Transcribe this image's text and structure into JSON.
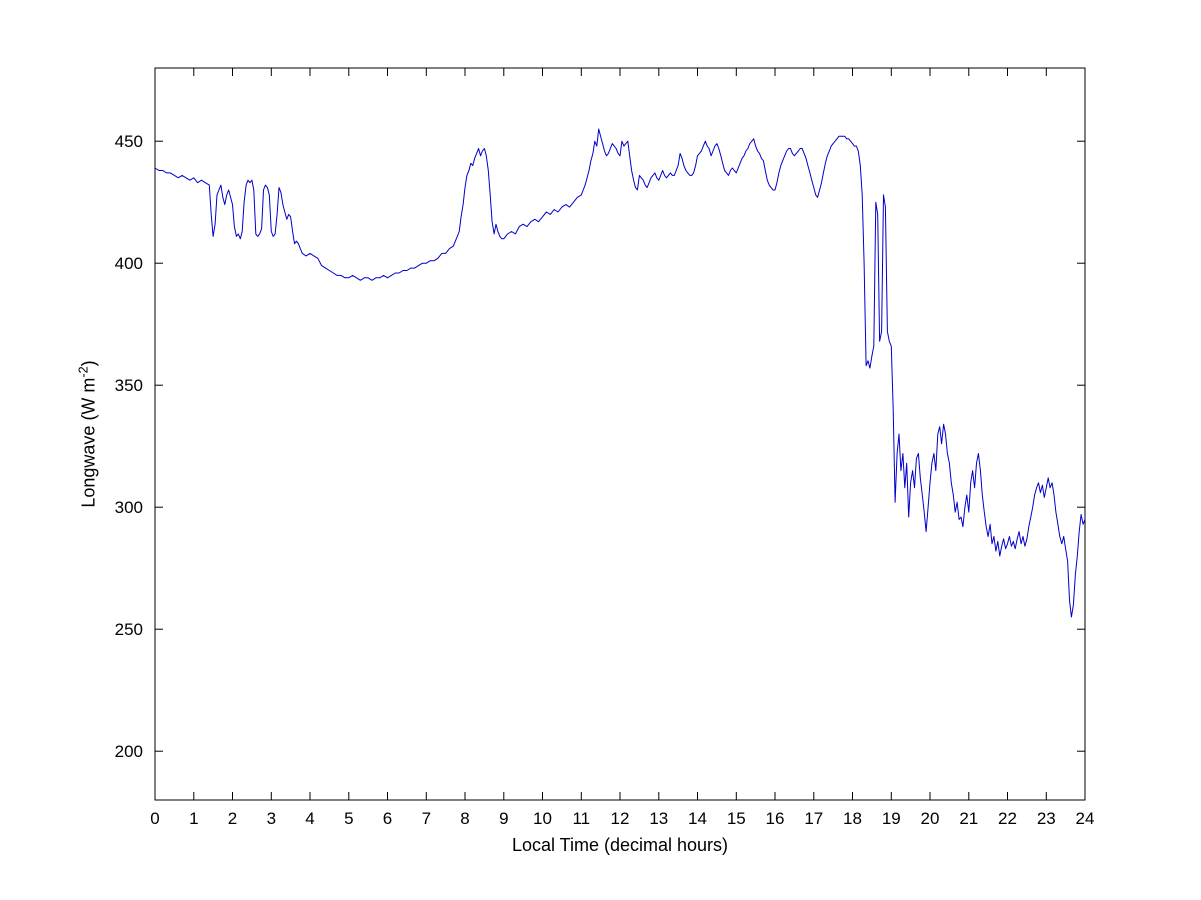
{
  "figure": {
    "xlabel": "Local Time (decimal hours)",
    "ylabel_pre": "Longwave (W m",
    "ylabel_sup": "-2",
    "ylabel_post": ")"
  },
  "chart_data": {
    "type": "line",
    "title": "",
    "xlabel": "Local Time (decimal hours)",
    "ylabel": "Longwave (W m^-2)",
    "xlim": [
      0,
      24
    ],
    "ylim": [
      180,
      480
    ],
    "xticks": [
      0,
      1,
      2,
      3,
      4,
      5,
      6,
      7,
      8,
      9,
      10,
      11,
      12,
      13,
      14,
      15,
      16,
      17,
      18,
      19,
      20,
      21,
      22,
      23,
      24
    ],
    "yticks": [
      200,
      250,
      300,
      350,
      400,
      450
    ],
    "grid": false,
    "legend": false,
    "line_color": "#0000cc",
    "axis_color": "#000000",
    "points": [
      [
        0,
        439
      ],
      [
        0.1,
        438
      ],
      [
        0.2,
        438
      ],
      [
        0.3,
        437
      ],
      [
        0.4,
        437
      ],
      [
        0.5,
        436
      ],
      [
        0.6,
        435
      ],
      [
        0.7,
        436
      ],
      [
        0.8,
        435
      ],
      [
        0.9,
        434
      ],
      [
        1.0,
        435
      ],
      [
        1.1,
        433
      ],
      [
        1.2,
        434
      ],
      [
        1.3,
        433
      ],
      [
        1.4,
        432
      ],
      [
        1.45,
        420
      ],
      [
        1.5,
        411
      ],
      [
        1.55,
        416
      ],
      [
        1.6,
        428
      ],
      [
        1.65,
        430
      ],
      [
        1.7,
        432
      ],
      [
        1.75,
        427
      ],
      [
        1.8,
        424
      ],
      [
        1.85,
        428
      ],
      [
        1.9,
        430
      ],
      [
        1.95,
        427
      ],
      [
        2.0,
        424
      ],
      [
        2.05,
        415
      ],
      [
        2.1,
        411
      ],
      [
        2.15,
        412
      ],
      [
        2.2,
        410
      ],
      [
        2.25,
        413
      ],
      [
        2.3,
        425
      ],
      [
        2.35,
        432
      ],
      [
        2.4,
        434
      ],
      [
        2.45,
        433
      ],
      [
        2.5,
        434
      ],
      [
        2.55,
        430
      ],
      [
        2.6,
        412
      ],
      [
        2.65,
        411
      ],
      [
        2.7,
        412
      ],
      [
        2.75,
        414
      ],
      [
        2.8,
        430
      ],
      [
        2.85,
        432
      ],
      [
        2.9,
        431
      ],
      [
        2.95,
        428
      ],
      [
        3.0,
        413
      ],
      [
        3.05,
        411
      ],
      [
        3.1,
        412
      ],
      [
        3.15,
        420
      ],
      [
        3.2,
        431
      ],
      [
        3.25,
        429
      ],
      [
        3.3,
        424
      ],
      [
        3.35,
        421
      ],
      [
        3.4,
        418
      ],
      [
        3.45,
        420
      ],
      [
        3.5,
        419
      ],
      [
        3.55,
        413
      ],
      [
        3.6,
        408
      ],
      [
        3.65,
        409
      ],
      [
        3.7,
        408
      ],
      [
        3.75,
        406
      ],
      [
        3.8,
        404
      ],
      [
        3.9,
        403
      ],
      [
        4.0,
        404
      ],
      [
        4.1,
        403
      ],
      [
        4.2,
        402
      ],
      [
        4.3,
        399
      ],
      [
        4.4,
        398
      ],
      [
        4.5,
        397
      ],
      [
        4.6,
        396
      ],
      [
        4.7,
        395
      ],
      [
        4.8,
        395
      ],
      [
        4.9,
        394
      ],
      [
        5.0,
        394
      ],
      [
        5.1,
        395
      ],
      [
        5.2,
        394
      ],
      [
        5.3,
        393
      ],
      [
        5.4,
        394
      ],
      [
        5.5,
        394
      ],
      [
        5.6,
        393
      ],
      [
        5.7,
        394
      ],
      [
        5.8,
        394
      ],
      [
        5.9,
        395
      ],
      [
        6.0,
        394
      ],
      [
        6.1,
        395
      ],
      [
        6.2,
        396
      ],
      [
        6.3,
        396
      ],
      [
        6.4,
        397
      ],
      [
        6.5,
        397
      ],
      [
        6.6,
        398
      ],
      [
        6.7,
        398
      ],
      [
        6.8,
        399
      ],
      [
        6.9,
        400
      ],
      [
        7.0,
        400
      ],
      [
        7.1,
        401
      ],
      [
        7.2,
        401
      ],
      [
        7.3,
        402
      ],
      [
        7.4,
        404
      ],
      [
        7.5,
        404
      ],
      [
        7.6,
        406
      ],
      [
        7.7,
        407
      ],
      [
        7.75,
        409
      ],
      [
        7.8,
        411
      ],
      [
        7.85,
        413
      ],
      [
        7.9,
        419
      ],
      [
        7.95,
        424
      ],
      [
        8.0,
        431
      ],
      [
        8.05,
        436
      ],
      [
        8.1,
        438
      ],
      [
        8.15,
        441
      ],
      [
        8.2,
        440
      ],
      [
        8.25,
        443
      ],
      [
        8.3,
        445
      ],
      [
        8.35,
        447
      ],
      [
        8.4,
        444
      ],
      [
        8.45,
        446
      ],
      [
        8.5,
        447
      ],
      [
        8.55,
        444
      ],
      [
        8.6,
        438
      ],
      [
        8.65,
        428
      ],
      [
        8.7,
        417
      ],
      [
        8.75,
        412
      ],
      [
        8.8,
        416
      ],
      [
        8.85,
        413
      ],
      [
        8.9,
        411
      ],
      [
        8.95,
        410
      ],
      [
        9.0,
        410
      ],
      [
        9.1,
        412
      ],
      [
        9.2,
        413
      ],
      [
        9.3,
        412
      ],
      [
        9.4,
        415
      ],
      [
        9.5,
        416
      ],
      [
        9.6,
        415
      ],
      [
        9.7,
        417
      ],
      [
        9.8,
        418
      ],
      [
        9.9,
        417
      ],
      [
        10.0,
        419
      ],
      [
        10.1,
        421
      ],
      [
        10.2,
        420
      ],
      [
        10.3,
        422
      ],
      [
        10.4,
        421
      ],
      [
        10.5,
        423
      ],
      [
        10.6,
        424
      ],
      [
        10.7,
        423
      ],
      [
        10.8,
        425
      ],
      [
        10.9,
        427
      ],
      [
        11.0,
        428
      ],
      [
        11.05,
        430
      ],
      [
        11.1,
        432
      ],
      [
        11.15,
        435
      ],
      [
        11.2,
        438
      ],
      [
        11.25,
        442
      ],
      [
        11.3,
        445
      ],
      [
        11.35,
        450
      ],
      [
        11.4,
        448
      ],
      [
        11.45,
        455
      ],
      [
        11.5,
        452
      ],
      [
        11.55,
        449
      ],
      [
        11.6,
        446
      ],
      [
        11.65,
        444
      ],
      [
        11.7,
        445
      ],
      [
        11.75,
        447
      ],
      [
        11.8,
        449
      ],
      [
        11.85,
        448
      ],
      [
        11.9,
        447
      ],
      [
        11.95,
        445
      ],
      [
        12.0,
        444
      ],
      [
        12.05,
        450
      ],
      [
        12.1,
        448
      ],
      [
        12.15,
        449
      ],
      [
        12.2,
        450
      ],
      [
        12.25,
        444
      ],
      [
        12.3,
        438
      ],
      [
        12.35,
        434
      ],
      [
        12.4,
        431
      ],
      [
        12.45,
        430
      ],
      [
        12.5,
        436
      ],
      [
        12.55,
        435
      ],
      [
        12.6,
        434
      ],
      [
        12.65,
        432
      ],
      [
        12.7,
        431
      ],
      [
        12.75,
        433
      ],
      [
        12.8,
        435
      ],
      [
        12.85,
        436
      ],
      [
        12.9,
        437
      ],
      [
        12.95,
        435
      ],
      [
        13.0,
        434
      ],
      [
        13.05,
        436
      ],
      [
        13.1,
        438
      ],
      [
        13.15,
        436
      ],
      [
        13.2,
        435
      ],
      [
        13.25,
        436
      ],
      [
        13.3,
        437
      ],
      [
        13.35,
        436
      ],
      [
        13.4,
        436
      ],
      [
        13.45,
        438
      ],
      [
        13.5,
        440
      ],
      [
        13.55,
        445
      ],
      [
        13.6,
        443
      ],
      [
        13.65,
        440
      ],
      [
        13.7,
        438
      ],
      [
        13.75,
        437
      ],
      [
        13.8,
        436
      ],
      [
        13.85,
        436
      ],
      [
        13.9,
        437
      ],
      [
        13.95,
        440
      ],
      [
        14.0,
        444
      ],
      [
        14.05,
        445
      ],
      [
        14.1,
        446
      ],
      [
        14.15,
        448
      ],
      [
        14.2,
        450
      ],
      [
        14.25,
        448
      ],
      [
        14.3,
        447
      ],
      [
        14.35,
        444
      ],
      [
        14.4,
        446
      ],
      [
        14.45,
        448
      ],
      [
        14.5,
        449
      ],
      [
        14.55,
        447
      ],
      [
        14.6,
        444
      ],
      [
        14.65,
        441
      ],
      [
        14.7,
        438
      ],
      [
        14.75,
        437
      ],
      [
        14.8,
        436
      ],
      [
        14.85,
        438
      ],
      [
        14.9,
        439
      ],
      [
        14.95,
        438
      ],
      [
        15.0,
        437
      ],
      [
        15.05,
        439
      ],
      [
        15.1,
        441
      ],
      [
        15.15,
        443
      ],
      [
        15.2,
        444
      ],
      [
        15.25,
        446
      ],
      [
        15.3,
        447
      ],
      [
        15.35,
        449
      ],
      [
        15.4,
        450
      ],
      [
        15.45,
        451
      ],
      [
        15.5,
        448
      ],
      [
        15.55,
        446
      ],
      [
        15.6,
        445
      ],
      [
        15.65,
        443
      ],
      [
        15.7,
        442
      ],
      [
        15.75,
        438
      ],
      [
        15.8,
        434
      ],
      [
        15.85,
        432
      ],
      [
        15.9,
        431
      ],
      [
        15.95,
        430
      ],
      [
        16.0,
        430
      ],
      [
        16.05,
        433
      ],
      [
        16.1,
        437
      ],
      [
        16.15,
        440
      ],
      [
        16.2,
        442
      ],
      [
        16.25,
        444
      ],
      [
        16.3,
        446
      ],
      [
        16.35,
        447
      ],
      [
        16.4,
        447
      ],
      [
        16.45,
        445
      ],
      [
        16.5,
        444
      ],
      [
        16.55,
        445
      ],
      [
        16.6,
        446
      ],
      [
        16.65,
        447
      ],
      [
        16.7,
        447
      ],
      [
        16.75,
        445
      ],
      [
        16.8,
        443
      ],
      [
        16.85,
        440
      ],
      [
        16.9,
        437
      ],
      [
        16.95,
        434
      ],
      [
        17.0,
        431
      ],
      [
        17.05,
        428
      ],
      [
        17.1,
        427
      ],
      [
        17.15,
        430
      ],
      [
        17.2,
        433
      ],
      [
        17.25,
        437
      ],
      [
        17.3,
        441
      ],
      [
        17.35,
        444
      ],
      [
        17.4,
        446
      ],
      [
        17.45,
        448
      ],
      [
        17.5,
        449
      ],
      [
        17.55,
        450
      ],
      [
        17.6,
        451
      ],
      [
        17.65,
        452
      ],
      [
        17.7,
        452
      ],
      [
        17.75,
        452
      ],
      [
        17.8,
        452
      ],
      [
        17.85,
        451
      ],
      [
        17.9,
        451
      ],
      [
        17.95,
        450
      ],
      [
        18.0,
        449
      ],
      [
        18.05,
        448
      ],
      [
        18.1,
        448
      ],
      [
        18.15,
        446
      ],
      [
        18.2,
        440
      ],
      [
        18.25,
        428
      ],
      [
        18.3,
        400
      ],
      [
        18.35,
        358
      ],
      [
        18.4,
        360
      ],
      [
        18.45,
        357
      ],
      [
        18.5,
        362
      ],
      [
        18.55,
        366
      ],
      [
        18.6,
        425
      ],
      [
        18.65,
        420
      ],
      [
        18.7,
        368
      ],
      [
        18.75,
        372
      ],
      [
        18.8,
        428
      ],
      [
        18.85,
        423
      ],
      [
        18.9,
        372
      ],
      [
        18.95,
        368
      ],
      [
        19.0,
        366
      ],
      [
        19.05,
        340
      ],
      [
        19.1,
        302
      ],
      [
        19.15,
        322
      ],
      [
        19.2,
        330
      ],
      [
        19.25,
        315
      ],
      [
        19.3,
        322
      ],
      [
        19.35,
        308
      ],
      [
        19.4,
        318
      ],
      [
        19.45,
        296
      ],
      [
        19.5,
        310
      ],
      [
        19.55,
        315
      ],
      [
        19.6,
        308
      ],
      [
        19.65,
        320
      ],
      [
        19.7,
        322
      ],
      [
        19.75,
        312
      ],
      [
        19.8,
        305
      ],
      [
        19.85,
        298
      ],
      [
        19.9,
        290
      ],
      [
        19.95,
        300
      ],
      [
        20.0,
        310
      ],
      [
        20.05,
        318
      ],
      [
        20.1,
        322
      ],
      [
        20.15,
        315
      ],
      [
        20.2,
        330
      ],
      [
        20.25,
        333
      ],
      [
        20.3,
        326
      ],
      [
        20.35,
        334
      ],
      [
        20.4,
        330
      ],
      [
        20.45,
        322
      ],
      [
        20.5,
        318
      ],
      [
        20.55,
        310
      ],
      [
        20.6,
        305
      ],
      [
        20.65,
        298
      ],
      [
        20.7,
        302
      ],
      [
        20.75,
        295
      ],
      [
        20.8,
        296
      ],
      [
        20.85,
        292
      ],
      [
        20.9,
        300
      ],
      [
        20.95,
        305
      ],
      [
        21.0,
        298
      ],
      [
        21.05,
        310
      ],
      [
        21.1,
        315
      ],
      [
        21.15,
        308
      ],
      [
        21.2,
        318
      ],
      [
        21.25,
        322
      ],
      [
        21.3,
        315
      ],
      [
        21.35,
        305
      ],
      [
        21.4,
        298
      ],
      [
        21.45,
        292
      ],
      [
        21.5,
        288
      ],
      [
        21.55,
        293
      ],
      [
        21.6,
        285
      ],
      [
        21.65,
        288
      ],
      [
        21.7,
        282
      ],
      [
        21.75,
        286
      ],
      [
        21.8,
        280
      ],
      [
        21.85,
        284
      ],
      [
        21.9,
        287
      ],
      [
        21.95,
        283
      ],
      [
        22.0,
        285
      ],
      [
        22.05,
        288
      ],
      [
        22.1,
        284
      ],
      [
        22.15,
        286
      ],
      [
        22.2,
        283
      ],
      [
        22.25,
        287
      ],
      [
        22.3,
        290
      ],
      [
        22.35,
        285
      ],
      [
        22.4,
        288
      ],
      [
        22.45,
        284
      ],
      [
        22.5,
        287
      ],
      [
        22.55,
        292
      ],
      [
        22.6,
        296
      ],
      [
        22.65,
        300
      ],
      [
        22.7,
        305
      ],
      [
        22.75,
        308
      ],
      [
        22.8,
        310
      ],
      [
        22.85,
        306
      ],
      [
        22.9,
        309
      ],
      [
        22.95,
        304
      ],
      [
        23.0,
        308
      ],
      [
        23.05,
        312
      ],
      [
        23.1,
        308
      ],
      [
        23.15,
        310
      ],
      [
        23.2,
        305
      ],
      [
        23.25,
        298
      ],
      [
        23.3,
        293
      ],
      [
        23.35,
        288
      ],
      [
        23.4,
        285
      ],
      [
        23.45,
        288
      ],
      [
        23.5,
        283
      ],
      [
        23.55,
        278
      ],
      [
        23.6,
        262
      ],
      [
        23.65,
        255
      ],
      [
        23.7,
        260
      ],
      [
        23.75,
        272
      ],
      [
        23.8,
        280
      ],
      [
        23.85,
        290
      ],
      [
        23.9,
        297
      ],
      [
        23.95,
        293
      ],
      [
        24.0,
        295
      ]
    ]
  }
}
